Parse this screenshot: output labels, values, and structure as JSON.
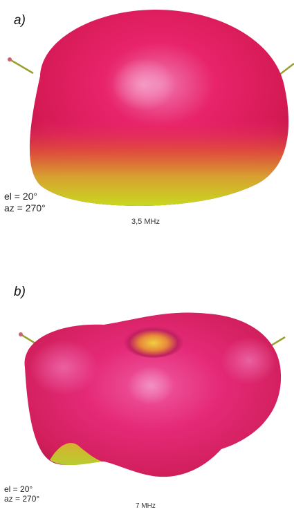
{
  "panels": [
    {
      "label": "a)",
      "view": {
        "el": "el = 20°",
        "az": "az = 270°"
      },
      "frequency": "3,5 MHz"
    },
    {
      "label": "b)",
      "view": {
        "el": "el = 20°",
        "az": "az = 270°"
      },
      "frequency": "7 MHz"
    }
  ],
  "colors": {
    "lobe_main": "#e8236a",
    "lobe_highlight": "#f07ab0",
    "lobe_shadow": "#c4124a",
    "lobe_bottom": "#c8d820",
    "wire": "#9aa030"
  }
}
